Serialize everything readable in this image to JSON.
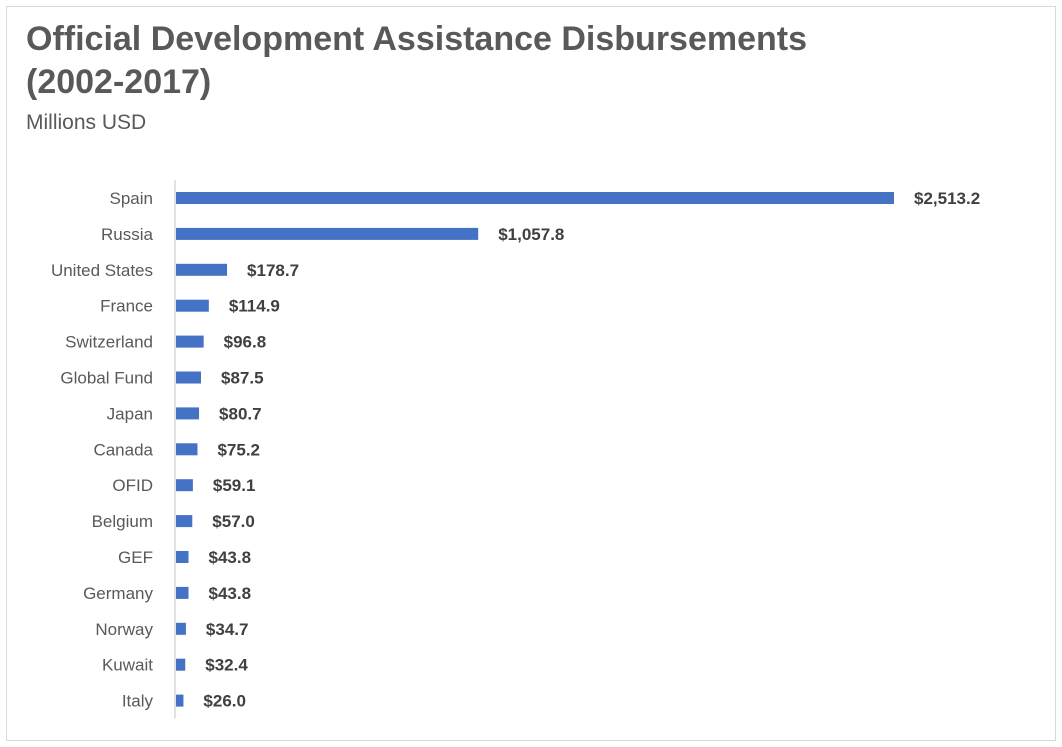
{
  "chart_data": {
    "type": "bar",
    "orientation": "horizontal",
    "title": "Official Development Assistance Disbursements (2002-2017)",
    "subtitle": "Millions USD",
    "categories": [
      "Spain",
      "Russia",
      "United States",
      "France",
      "Switzerland",
      "Global Fund",
      "Japan",
      "Canada",
      "OFID",
      "Belgium",
      "GEF",
      "Germany",
      "Norway",
      "Kuwait",
      "Italy"
    ],
    "values": [
      2513.2,
      1057.8,
      178.7,
      114.9,
      96.8,
      87.5,
      80.7,
      75.2,
      59.1,
      57.0,
      43.8,
      43.8,
      34.7,
      32.4,
      26.0
    ],
    "data_labels": [
      "$2,513.2",
      "$1,057.8",
      "$178.7",
      "$114.9",
      "$96.8",
      "$87.5",
      "$80.7",
      "$75.2",
      "$59.1",
      "$57.0",
      "$43.8",
      "$43.8",
      "$34.7",
      "$32.4",
      "$26.0"
    ],
    "xlabel": "",
    "ylabel": "",
    "xlim": [
      0,
      2513.2
    ],
    "grid": false,
    "legend": "none",
    "bar_color": "#4472c4"
  }
}
